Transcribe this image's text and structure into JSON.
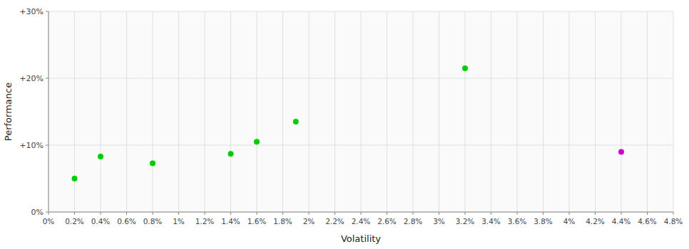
{
  "chart_data": {
    "type": "scatter",
    "xlabel": "Volatility",
    "ylabel": "Performance",
    "x": [
      0.002,
      0.004,
      0.008,
      0.014,
      0.016,
      0.019,
      0.032,
      0.044
    ],
    "values": [
      0.05,
      0.083,
      0.073,
      0.087,
      0.105,
      0.135,
      0.215,
      0.09
    ],
    "colors": [
      "#00cc00",
      "#00cc00",
      "#00cc00",
      "#00cc00",
      "#00cc00",
      "#00cc00",
      "#00cc00",
      "#cc00cc"
    ],
    "xlim": [
      0.0,
      0.048
    ],
    "ylim": [
      0.0,
      0.3
    ],
    "xticks": [
      {
        "value": 0.0,
        "label": "0%"
      },
      {
        "value": 0.002,
        "label": "0.2%"
      },
      {
        "value": 0.004,
        "label": "0.4%"
      },
      {
        "value": 0.006,
        "label": "0.6%"
      },
      {
        "value": 0.008,
        "label": "0.8%"
      },
      {
        "value": 0.01,
        "label": "1%"
      },
      {
        "value": 0.012,
        "label": "1.2%"
      },
      {
        "value": 0.014,
        "label": "1.4%"
      },
      {
        "value": 0.016,
        "label": "1.6%"
      },
      {
        "value": 0.018,
        "label": "1.8%"
      },
      {
        "value": 0.02,
        "label": "2%"
      },
      {
        "value": 0.022,
        "label": "2.2%"
      },
      {
        "value": 0.024,
        "label": "2.4%"
      },
      {
        "value": 0.026,
        "label": "2.6%"
      },
      {
        "value": 0.028,
        "label": "2.8%"
      },
      {
        "value": 0.03,
        "label": "3%"
      },
      {
        "value": 0.032,
        "label": "3.2%"
      },
      {
        "value": 0.034,
        "label": "3.4%"
      },
      {
        "value": 0.036,
        "label": "3.6%"
      },
      {
        "value": 0.038,
        "label": "3.8%"
      },
      {
        "value": 0.04,
        "label": "4%"
      },
      {
        "value": 0.042,
        "label": "4.2%"
      },
      {
        "value": 0.044,
        "label": "4.4%"
      },
      {
        "value": 0.046,
        "label": "4.6%"
      },
      {
        "value": 0.048,
        "label": "4.8%"
      }
    ],
    "yticks": [
      {
        "value": 0.0,
        "label": "0%"
      },
      {
        "value": 0.1,
        "label": "+10%"
      },
      {
        "value": 0.2,
        "label": "+20%"
      },
      {
        "value": 0.3,
        "label": "+30%"
      }
    ],
    "grid": true
  }
}
